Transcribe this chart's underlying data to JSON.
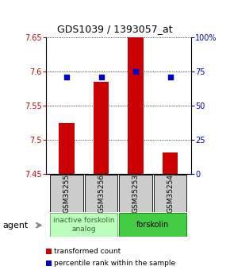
{
  "title": "GDS1039 / 1393057_at",
  "samples": [
    "GSM35255",
    "GSM35256",
    "GSM35253",
    "GSM35254"
  ],
  "bar_values": [
    7.524,
    7.585,
    7.651,
    7.481
  ],
  "percentile_values": [
    71,
    71,
    75,
    71
  ],
  "ylim": [
    7.45,
    7.65
  ],
  "yticks": [
    7.45,
    7.5,
    7.55,
    7.6,
    7.65
  ],
  "right_yticks": [
    0,
    25,
    50,
    75,
    100
  ],
  "right_ylim": [
    0,
    100
  ],
  "bar_color": "#cc0000",
  "dot_color": "#0000cc",
  "bar_width": 0.45,
  "group1_color": "#bbffbb",
  "group1_border": "#88aa88",
  "group1_text_color": "#336633",
  "group2_color": "#44cc44",
  "group2_border": "#228822",
  "group2_text_color": "#000000",
  "sample_box_color": "#cccccc",
  "title_fontsize": 9,
  "tick_fontsize": 7,
  "sample_label_fontsize": 6.5,
  "group_label_fontsize": 7,
  "legend_fontsize": 6.5,
  "agent_fontsize": 8
}
